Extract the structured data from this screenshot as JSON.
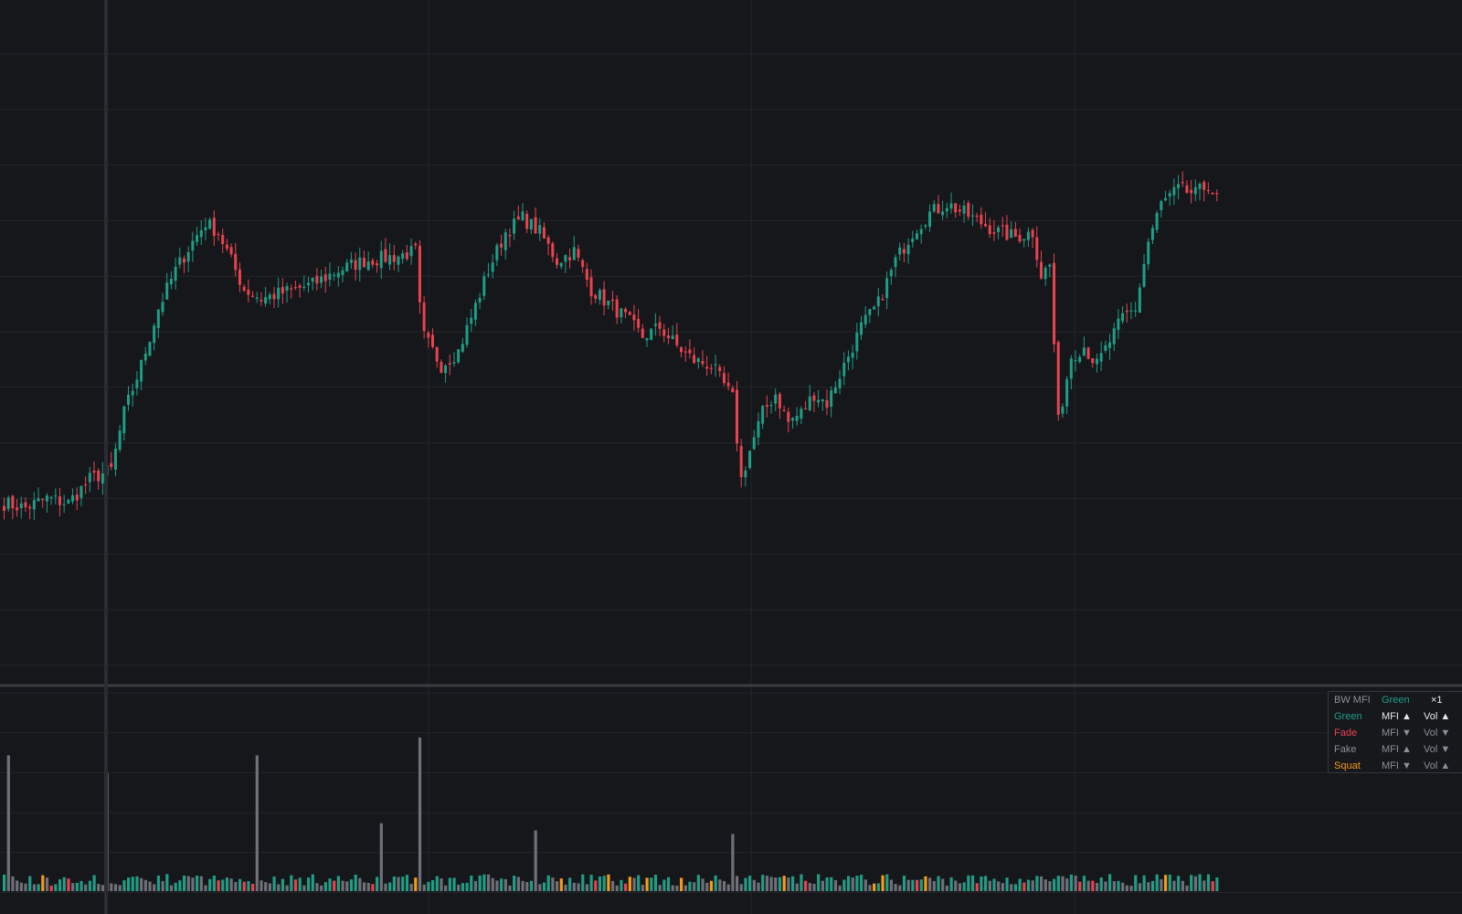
{
  "colors": {
    "background": "#16171b",
    "grid": "#24262b",
    "up": "#1f9d85",
    "down": "#e8434f",
    "green": "#1f9d85",
    "fade": "#e8434f",
    "fake": "#6f7079",
    "squat": "#f59b1b",
    "crosshair": "#2a2c31"
  },
  "legend": {
    "title": "BW MFI",
    "selected_label": "Green",
    "multiplier": "×1",
    "rows": [
      {
        "name": "Green",
        "mfi": "MFI ▲",
        "vol": "Vol ▲",
        "color": "#1f9d85",
        "active": true
      },
      {
        "name": "Fade",
        "mfi": "MFI ▼",
        "vol": "Vol ▼",
        "color": "#e8434f",
        "active": false
      },
      {
        "name": "Fake",
        "mfi": "MFI ▲",
        "vol": "Vol ▼",
        "color": "#8b8e96",
        "active": false
      },
      {
        "name": "Squat",
        "mfi": "MFI ▼",
        "vol": "Vol ▲",
        "color": "#f59b1b",
        "active": false
      }
    ]
  },
  "chart_data": [
    {
      "type": "candlestick",
      "title": "",
      "grid": true,
      "ylim": [
        0,
        100
      ],
      "anchors": [
        [
          0,
          23
        ],
        [
          5,
          22
        ],
        [
          10,
          24
        ],
        [
          15,
          23
        ],
        [
          20,
          28
        ],
        [
          25,
          30
        ],
        [
          28,
          42
        ],
        [
          32,
          52
        ],
        [
          36,
          64
        ],
        [
          40,
          72
        ],
        [
          44,
          78
        ],
        [
          47,
          82
        ],
        [
          50,
          80
        ],
        [
          53,
          74
        ],
        [
          56,
          68
        ],
        [
          60,
          66
        ],
        [
          64,
          67
        ],
        [
          68,
          68
        ],
        [
          72,
          69
        ],
        [
          78,
          72
        ],
        [
          84,
          74
        ],
        [
          92,
          75
        ],
        [
          96,
          76
        ],
        [
          97,
          64
        ],
        [
          98,
          58
        ],
        [
          102,
          52
        ],
        [
          106,
          55
        ],
        [
          109,
          62
        ],
        [
          113,
          72
        ],
        [
          117,
          80
        ],
        [
          121,
          83
        ],
        [
          125,
          80
        ],
        [
          129,
          74
        ],
        [
          133,
          76
        ],
        [
          137,
          68
        ],
        [
          141,
          65
        ],
        [
          145,
          62
        ],
        [
          149,
          58
        ],
        [
          153,
          60
        ],
        [
          157,
          56
        ],
        [
          161,
          53
        ],
        [
          165,
          52
        ],
        [
          170,
          45
        ],
        [
          172,
          28
        ],
        [
          174,
          34
        ],
        [
          177,
          42
        ],
        [
          180,
          46
        ],
        [
          183,
          40
        ],
        [
          186,
          42
        ],
        [
          189,
          46
        ],
        [
          192,
          44
        ],
        [
          196,
          52
        ],
        [
          200,
          60
        ],
        [
          204,
          65
        ],
        [
          208,
          74
        ],
        [
          212,
          80
        ],
        [
          216,
          84
        ],
        [
          220,
          86
        ],
        [
          224,
          84
        ],
        [
          228,
          82
        ],
        [
          232,
          80
        ],
        [
          236,
          79
        ],
        [
          240,
          80
        ],
        [
          242,
          71
        ],
        [
          244,
          73
        ],
        [
          246,
          40
        ],
        [
          249,
          54
        ],
        [
          252,
          56
        ],
        [
          255,
          52
        ],
        [
          258,
          57
        ],
        [
          261,
          62
        ],
        [
          264,
          64
        ],
        [
          267,
          78
        ],
        [
          270,
          86
        ],
        [
          274,
          89
        ],
        [
          278,
          88
        ],
        [
          281,
          90
        ],
        [
          283,
          87
        ]
      ],
      "seed": 7,
      "volume_spikes": [
        [
          1,
          3.8
        ],
        [
          24,
          3.3
        ],
        [
          59,
          3.8
        ],
        [
          88,
          1.9
        ],
        [
          97,
          4.3
        ],
        [
          124,
          1.7
        ],
        [
          170,
          1.6
        ]
      ]
    },
    {
      "type": "bar",
      "title": "BW MFI",
      "series": [
        {
          "name": "Green"
        },
        {
          "name": "Fade"
        },
        {
          "name": "Fake"
        },
        {
          "name": "Squat"
        }
      ]
    }
  ]
}
